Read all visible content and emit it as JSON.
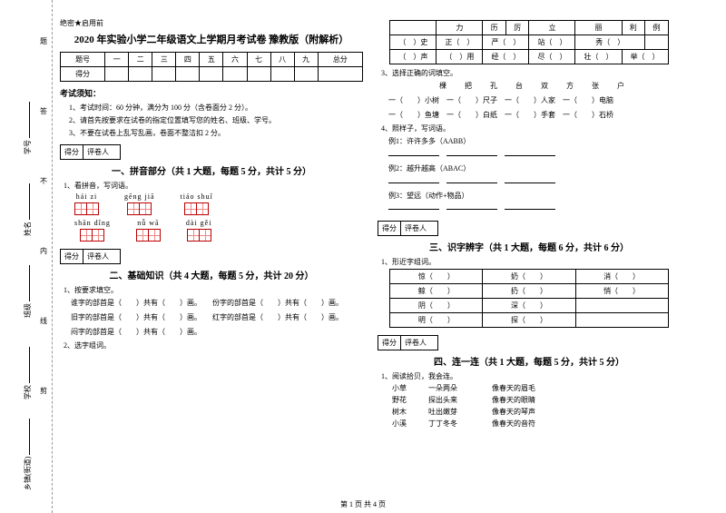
{
  "secret": "绝密★启用前",
  "title": "2020 年实验小学二年级语文上学期月考试卷 豫教版（附解析）",
  "score_headers": [
    "题号",
    "一",
    "二",
    "三",
    "四",
    "五",
    "六",
    "七",
    "八",
    "九",
    "总分"
  ],
  "score_row": "得分",
  "notice_h": "考试须知：",
  "notices": [
    "1、考试时间：60 分钟，满分为 100 分（含卷面分 2 分）。",
    "2、请首先按要求在试卷的指定位置填写您的姓名、班级、学号。",
    "3、不要在试卷上乱写乱画，卷面不整洁扣 2 分。"
  ],
  "scorebox": {
    "a": "得分",
    "b": "评卷人"
  },
  "sec1": "一、拼音部分（共 1 大题，每题 5 分，共计 5 分）",
  "q1": "1、看拼音，写词语。",
  "py_row1": [
    "hái  zi",
    "gēng  jiā",
    "tiáo  shuǐ"
  ],
  "py_row2": [
    "shān dǐng",
    "nǚ  wā",
    "dài  gěi"
  ],
  "sec2": "二、基础知识（共 4 大题，每题 5 分，共计 20 分）",
  "q2_1": "1、按要求填空。",
  "q2_lines": [
    "谁字的部首是（　　）共有（　　）画。　　份字的部首是（　　）共有（　　）画。",
    "旧字的部首是（　　）共有（　　）画。　　红字的部首是（　　）共有（　　）画。",
    "闷字的部首是（　　）共有（　　）画。"
  ],
  "q2_2": "2、选字组词。",
  "char_tbl1_h": [
    "",
    "力",
    "历",
    "厉",
    "立",
    "丽",
    "利",
    "例"
  ],
  "char_tbl1_r1": [
    "（　）史",
    "正（　）",
    "严（　）",
    "站（　）",
    "秀（　）",
    ""
  ],
  "char_tbl1_r2": [
    "（　）声",
    "（　）用",
    "经（　）",
    "尽（　）",
    "壮（　）",
    "举（　）"
  ],
  "q3": "3、选择正确的词填空。",
  "q3_words": "棵　把　孔　台　双　方　张　户",
  "q3_lines": [
    "一（　　）小树　一（　　）尺子　一（　　）人家　一（　　）电脑",
    "一（　　）鱼塘　一（　　）白纸　一（　　）手套　一（　　）石桥"
  ],
  "q4": "4、照样子，写词语。",
  "q4_lines": [
    "例1：许许多多（AABB）",
    "例2：越升越高（ABAC）",
    "例3：望远（动作+物品）"
  ],
  "sec3": "三、识字辨字（共 1 大题，每题 6 分，共计 6 分）",
  "q3_1": "1、形近字组词。",
  "char_tbl2": [
    [
      "惊（　　）",
      "奶（　　）",
      "消（　　）"
    ],
    [
      "鲸（　　）",
      "扔（　　）",
      "悄（　　）"
    ],
    [
      "阴（　　）",
      "深（　　）",
      ""
    ],
    [
      "明（　　）",
      "探（　　）",
      ""
    ]
  ],
  "sec4": "四、连一连（共 1 大题，每题 5 分，共计 5 分）",
  "q4_1": "1、阅读拾贝，我会连。",
  "poem": [
    [
      "小草",
      "一朵两朵",
      "像春天的眉毛"
    ],
    [
      "野花",
      "探出头来",
      "像春天的眼睛"
    ],
    [
      "树木",
      "吐出嫩芽",
      "像春天的琴声"
    ],
    [
      "小溪",
      "丁丁冬冬",
      "像春天的音符"
    ]
  ],
  "binding": {
    "l1": "乡镇(街道)",
    "l2": "学校",
    "l3": "班级",
    "l4": "姓名",
    "l5": "学号"
  },
  "dots": [
    "剪",
    "线",
    "内",
    "不",
    "答",
    "题"
  ],
  "footer": "第 1 页 共 4 页"
}
